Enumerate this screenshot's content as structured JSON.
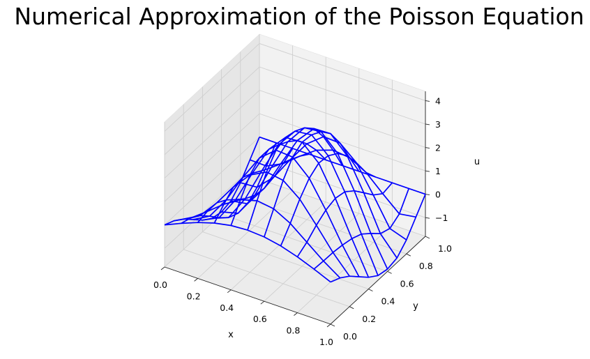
{
  "chart_data": {
    "type": "wireframe",
    "title": "Numerical Approximation of the Poisson Equation",
    "xlabel": "x",
    "ylabel": "y",
    "zlabel": "u",
    "xlim": [
      0,
      1
    ],
    "ylim": [
      0,
      1
    ],
    "zlim": [
      -1.8,
      4.4
    ],
    "xticks": [
      "0.0",
      "0.2",
      "0.4",
      "0.6",
      "0.8",
      "1.0"
    ],
    "yticks": [
      "0.0",
      "0.2",
      "0.4",
      "0.6",
      "0.8",
      "1.0"
    ],
    "zticks": [
      "−1",
      "0",
      "1",
      "2",
      "3",
      "4"
    ],
    "grid": true,
    "wire_color": "#0000ff",
    "x": [
      0.0,
      0.1,
      0.2,
      0.3,
      0.4,
      0.5,
      0.6,
      0.7,
      0.8,
      0.9,
      1.0
    ],
    "y": [
      0.0,
      0.1,
      0.2,
      0.3,
      0.4,
      0.5,
      0.6,
      0.7,
      0.8,
      0.9,
      1.0
    ],
    "u": [
      [
        0.0,
        0.31,
        0.59,
        0.81,
        0.95,
        1.0,
        0.95,
        0.81,
        0.59,
        0.31,
        0.0
      ],
      [
        -0.2,
        0.16,
        0.69,
        1.24,
        1.68,
        1.88,
        1.78,
        1.4,
        0.84,
        0.28,
        -0.2
      ],
      [
        -0.5,
        -0.11,
        0.68,
        1.6,
        2.36,
        2.73,
        2.62,
        2.06,
        1.19,
        0.27,
        -0.5
      ],
      [
        -0.9,
        -0.51,
        0.43,
        1.64,
        2.71,
        3.29,
        3.24,
        2.58,
        1.46,
        0.21,
        -0.9
      ],
      [
        -1.3,
        -0.95,
        0.07,
        1.44,
        2.71,
        3.46,
        3.5,
        2.85,
        1.59,
        0.11,
        -1.3
      ],
      [
        -1.6,
        -1.32,
        -0.27,
        1.17,
        2.52,
        3.35,
        3.44,
        2.79,
        1.49,
        -0.07,
        -1.6
      ],
      [
        -1.7,
        -1.51,
        -0.5,
        0.93,
        2.28,
        3.12,
        3.2,
        2.51,
        1.16,
        -0.42,
        -1.7
      ],
      [
        -1.6,
        -1.48,
        -0.58,
        0.72,
        1.96,
        2.71,
        2.74,
        2.04,
        0.7,
        -0.8,
        -1.6
      ],
      [
        -1.2,
        -1.15,
        -0.48,
        0.52,
        1.44,
        1.99,
        1.96,
        1.35,
        0.23,
        -0.96,
        -1.2
      ],
      [
        -0.6,
        -0.62,
        -0.27,
        0.29,
        0.79,
        1.04,
        0.96,
        0.57,
        -0.09,
        -0.71,
        -0.6
      ],
      [
        0.0,
        0.0,
        0.0,
        0.0,
        0.0,
        0.0,
        0.0,
        0.0,
        0.0,
        0.0,
        0.0
      ]
    ]
  }
}
